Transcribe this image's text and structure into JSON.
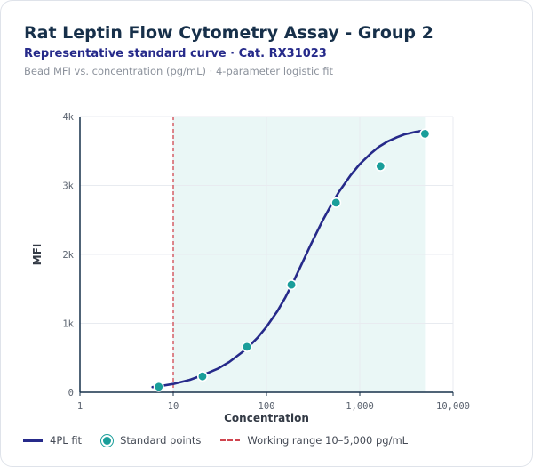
{
  "header": {
    "title": "Rat Leptin Flow Cytometry Assay - Group 2",
    "subtitle": "Representative standard curve · Cat. RX31023",
    "note": "Bead MFI vs. concentration (pg/mL) · 4-parameter logistic fit"
  },
  "colors": {
    "fit": "#262a8a",
    "points": "#1a9e9a",
    "working_range": "#d0454f",
    "shade": "#e6f6f5"
  },
  "chart_data": {
    "type": "scatter",
    "xlabel": "Concentration",
    "ylabel": "MFI",
    "x_scale": "log",
    "xlim": [
      1,
      10000
    ],
    "ylim": [
      0,
      4000
    ],
    "x_ticks": [
      1,
      10,
      100,
      1000,
      10000
    ],
    "x_tick_labels": [
      "1",
      "10",
      "100",
      "1,000",
      "10,000"
    ],
    "y_ticks": [
      0,
      1000,
      2000,
      3000,
      4000
    ],
    "y_tick_labels": [
      "0",
      "1k",
      "2k",
      "3k",
      "4k"
    ],
    "grid": true,
    "legend_position": "bottom",
    "working_range": [
      10,
      5000
    ],
    "series": [
      {
        "name": "Standard points",
        "kind": "points",
        "x": [
          7,
          20.6,
          61.7,
          185,
          556,
          1667,
          5000
        ],
        "y": [
          80,
          230,
          660,
          1560,
          2750,
          3280,
          3750
        ]
      },
      {
        "name": "4PL fit",
        "kind": "line",
        "x": [
          6,
          7,
          10,
          15,
          20,
          30,
          40,
          60,
          80,
          100,
          130,
          160,
          200,
          250,
          300,
          400,
          500,
          600,
          800,
          1000,
          1300,
          1600,
          2000,
          2500,
          3000,
          4000,
          5000
        ],
        "y": [
          75,
          85,
          120,
          180,
          240,
          340,
          440,
          620,
          790,
          950,
          1170,
          1380,
          1640,
          1920,
          2150,
          2490,
          2730,
          2910,
          3150,
          3310,
          3460,
          3560,
          3640,
          3700,
          3740,
          3780,
          3800
        ]
      }
    ],
    "legend": [
      {
        "key": "fit",
        "label": "4PL fit"
      },
      {
        "key": "points",
        "label": "Standard points"
      },
      {
        "key": "range",
        "label": "Working range 10–5,000 pg/mL"
      }
    ]
  }
}
